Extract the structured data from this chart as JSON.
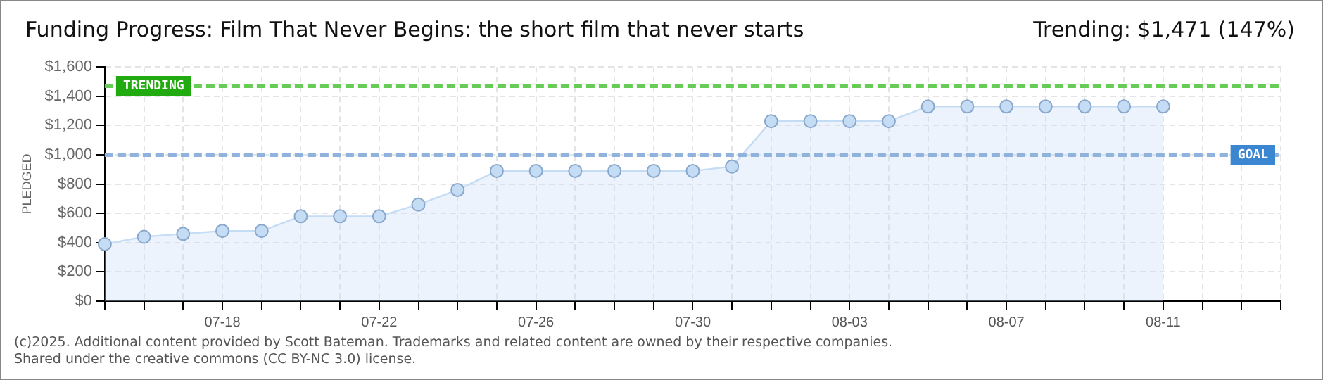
{
  "chart_data": {
    "type": "area",
    "title": "Funding Progress: Film That Never Begins: the short film that never starts",
    "subtitle": "Trending: $1,471 (147%)",
    "ylabel": "PLEDGED",
    "categories": [
      null,
      null,
      null,
      "07-18",
      null,
      null,
      null,
      "07-22",
      null,
      null,
      null,
      "07-26",
      null,
      null,
      null,
      "07-30",
      null,
      null,
      null,
      "08-03",
      null,
      null,
      null,
      "08-07",
      null,
      null,
      null,
      "08-11",
      null,
      null,
      null
    ],
    "series": [
      {
        "color": "#c5dcf5",
        "values": [
          390,
          440,
          460,
          480,
          480,
          580,
          580,
          580,
          660,
          760,
          890,
          890,
          890,
          890,
          890,
          890,
          920,
          1230,
          1230,
          1230,
          1230,
          1330,
          1330,
          1330,
          1330,
          1330,
          1330,
          1330,
          null,
          null,
          null
        ]
      }
    ],
    "ylim": [
      0,
      1600
    ],
    "yticks": [
      {
        "value": 0,
        "label": "$0"
      },
      {
        "value": 200,
        "label": "$200"
      },
      {
        "value": 400,
        "label": "$400"
      },
      {
        "value": 600,
        "label": "$600"
      },
      {
        "value": 800,
        "label": "$800"
      },
      {
        "value": 1000,
        "label": "$1,000"
      },
      {
        "value": 1200,
        "label": "$1,200"
      },
      {
        "value": 1400,
        "label": "$1,400"
      },
      {
        "value": 1600,
        "label": "$1,600"
      }
    ],
    "ref_lines": [
      {
        "axis": "y",
        "value": 1471,
        "label": "TRENDING",
        "color": "#66cc55",
        "line_style": "dashed"
      },
      {
        "axis": "y",
        "value": 1000,
        "label": "GOAL",
        "color": "#8fb3dd",
        "line_style": "dashed"
      }
    ],
    "annotations": [
      "(c)2025. Additional content provided by Scott Bateman. Trademarks and related content are owned by their respective companies.",
      "Shared under the creative commons (CC BY-NC 3.0) license."
    ],
    "grid": true,
    "legend": false,
    "marker": "circle",
    "line_style": "solid"
  }
}
